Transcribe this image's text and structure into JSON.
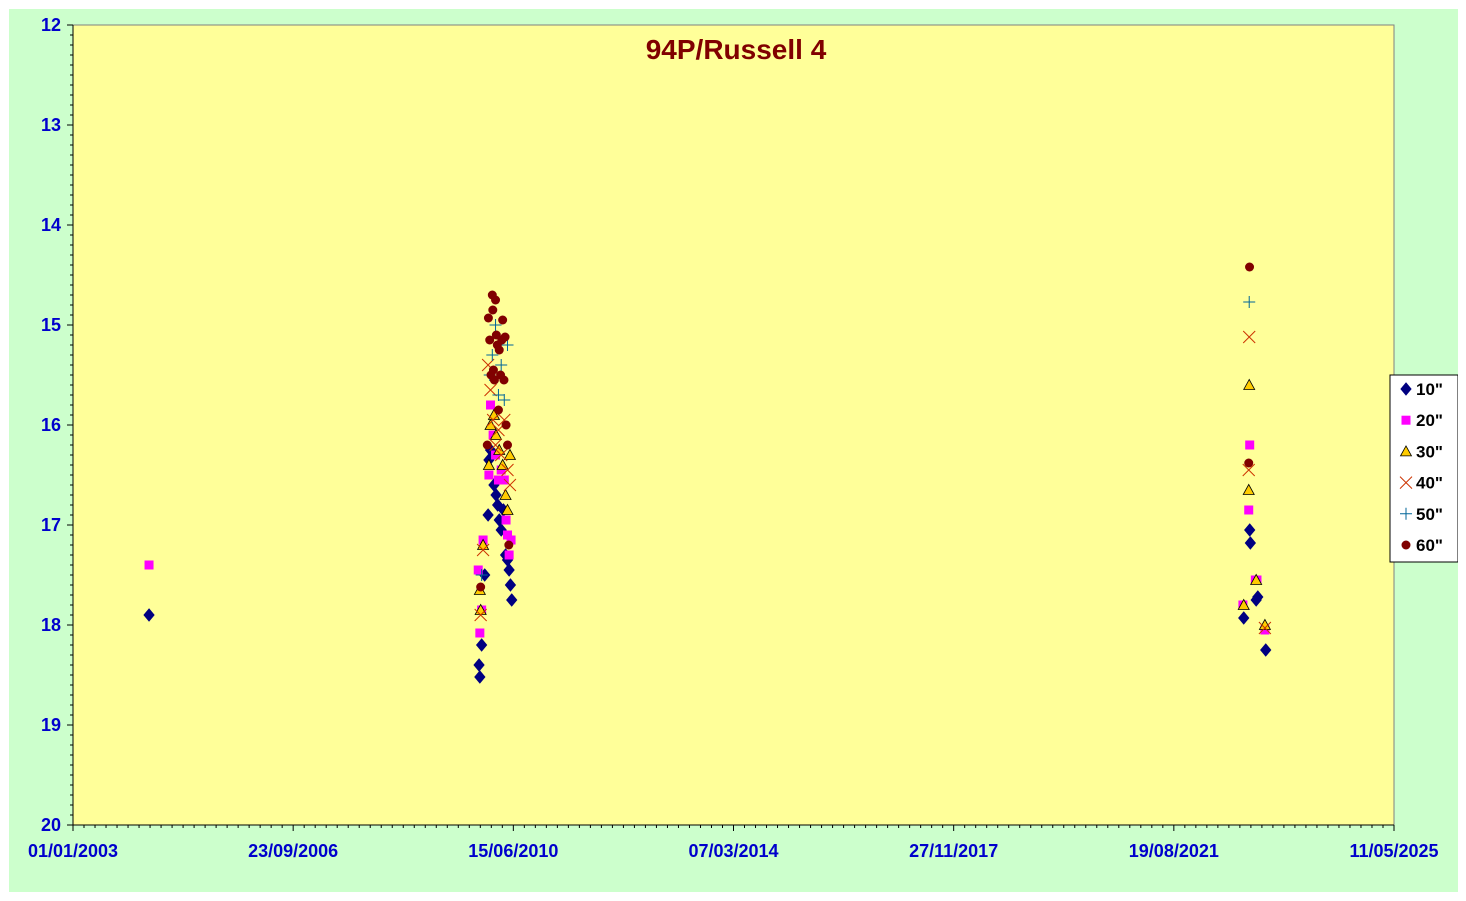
{
  "chart_data": {
    "type": "scatter",
    "title": "94P/Russell 4",
    "xlabel": "",
    "ylabel": "",
    "x_axis_type": "date",
    "xlim": [
      "2003-01-01",
      "2025-05-11"
    ],
    "x_ticks": [
      "01/01/2003",
      "23/09/2006",
      "15/06/2010",
      "07/03/2014",
      "27/11/2017",
      "19/08/2021",
      "11/05/2025"
    ],
    "ylim": [
      12,
      20
    ],
    "y_reversed": true,
    "y_ticks": [
      "12",
      "13",
      "14",
      "15",
      "16",
      "17",
      "18",
      "19",
      "20"
    ],
    "grid": false,
    "legend_position": "right",
    "plot_background": "#ffff99",
    "chart_background": "#ccffcc",
    "series": [
      {
        "name": "10\"",
        "marker": "diamond",
        "color": "#000080",
        "points": [
          [
            "2004-04-15",
            17.9
          ],
          [
            "2009-11-15",
            18.4
          ],
          [
            "2009-11-20",
            18.52
          ],
          [
            "2009-12-01",
            18.2
          ],
          [
            "2009-12-20",
            17.5
          ],
          [
            "2010-01-10",
            16.9
          ],
          [
            "2010-01-15",
            16.35
          ],
          [
            "2010-01-25",
            16.25
          ],
          [
            "2010-02-15",
            16.6
          ],
          [
            "2010-02-28",
            16.7
          ],
          [
            "2010-03-10",
            16.8
          ],
          [
            "2010-03-20",
            16.95
          ],
          [
            "2010-04-01",
            17.05
          ],
          [
            "2010-04-15",
            16.85
          ],
          [
            "2010-04-28",
            17.3
          ],
          [
            "2010-05-10",
            17.35
          ],
          [
            "2010-05-20",
            17.45
          ],
          [
            "2010-05-28",
            17.6
          ],
          [
            "2010-06-05",
            17.75
          ],
          [
            "2022-10-25",
            17.93
          ],
          [
            "2022-12-01",
            17.05
          ],
          [
            "2022-12-05",
            17.18
          ],
          [
            "2023-01-10",
            17.75
          ],
          [
            "2023-01-20",
            17.72
          ],
          [
            "2023-03-10",
            18.25
          ]
        ]
      },
      {
        "name": "20\"",
        "marker": "square",
        "color": "#ff00ff",
        "points": [
          [
            "2004-04-15",
            17.4
          ],
          [
            "2009-11-10",
            17.45
          ],
          [
            "2009-11-20",
            18.08
          ],
          [
            "2009-12-01",
            17.85
          ],
          [
            "2009-12-10",
            17.15
          ],
          [
            "2010-01-15",
            16.5
          ],
          [
            "2010-01-25",
            15.8
          ],
          [
            "2010-02-10",
            16.1
          ],
          [
            "2010-02-25",
            16.3
          ],
          [
            "2010-03-15",
            16.55
          ],
          [
            "2010-04-01",
            16.45
          ],
          [
            "2010-04-20",
            16.55
          ],
          [
            "2010-05-01",
            16.95
          ],
          [
            "2010-05-10",
            17.1
          ],
          [
            "2010-05-20",
            17.3
          ],
          [
            "2010-06-01",
            17.15
          ],
          [
            "2022-10-20",
            17.8
          ],
          [
            "2022-12-01",
            16.2
          ],
          [
            "2022-11-25",
            16.85
          ],
          [
            "2023-01-05",
            17.55
          ],
          [
            "2023-01-15",
            17.55
          ],
          [
            "2023-03-05",
            18.05
          ]
        ]
      },
      {
        "name": "30\"",
        "marker": "triangle",
        "color": "#ffcc00",
        "points": [
          [
            "2009-11-20",
            17.65
          ],
          [
            "2009-11-25",
            17.85
          ],
          [
            "2009-12-10",
            17.2
          ],
          [
            "2010-01-15",
            16.4
          ],
          [
            "2010-01-25",
            16.0
          ],
          [
            "2010-02-15",
            15.9
          ],
          [
            "2010-02-28",
            16.1
          ],
          [
            "2010-03-20",
            16.25
          ],
          [
            "2010-04-10",
            16.4
          ],
          [
            "2010-04-28",
            16.7
          ],
          [
            "2010-05-10",
            16.85
          ],
          [
            "2010-05-25",
            16.3
          ],
          [
            "2022-10-25",
            17.8
          ],
          [
            "2022-11-28",
            15.6
          ],
          [
            "2022-11-25",
            16.65
          ],
          [
            "2023-01-10",
            17.55
          ],
          [
            "2023-03-05",
            18.0
          ]
        ]
      },
      {
        "name": "40\"",
        "marker": "x",
        "color": "#cc3300",
        "points": [
          [
            "2009-11-25",
            17.9
          ],
          [
            "2009-12-10",
            17.25
          ],
          [
            "2010-01-10",
            15.4
          ],
          [
            "2010-01-25",
            15.65
          ],
          [
            "2010-02-10",
            15.95
          ],
          [
            "2010-02-25",
            16.2
          ],
          [
            "2010-03-15",
            16.05
          ],
          [
            "2010-04-01",
            16.3
          ],
          [
            "2010-04-20",
            15.95
          ],
          [
            "2010-05-10",
            16.45
          ],
          [
            "2010-05-25",
            16.6
          ],
          [
            "2022-11-28",
            15.12
          ],
          [
            "2022-11-25",
            16.45
          ],
          [
            "2023-03-05",
            18.03
          ]
        ]
      },
      {
        "name": "50\"",
        "marker": "plus",
        "color": "#006699",
        "points": [
          [
            "2009-12-01",
            17.5
          ],
          [
            "2010-01-20",
            15.5
          ],
          [
            "2010-02-05",
            15.3
          ],
          [
            "2010-02-25",
            15.0
          ],
          [
            "2010-03-15",
            15.7
          ],
          [
            "2010-04-01",
            15.4
          ],
          [
            "2010-04-20",
            15.75
          ],
          [
            "2010-05-10",
            15.2
          ],
          [
            "2022-11-28",
            14.77
          ]
        ]
      },
      {
        "name": "60\"",
        "marker": "circle",
        "color": "#800000",
        "points": [
          [
            "2009-11-25",
            17.62
          ],
          [
            "2010-01-05",
            16.2
          ],
          [
            "2010-01-12",
            14.93
          ],
          [
            "2010-01-20",
            15.15
          ],
          [
            "2010-01-28",
            15.5
          ],
          [
            "2010-02-05",
            14.7
          ],
          [
            "2010-02-08",
            14.85
          ],
          [
            "2010-02-12",
            15.45
          ],
          [
            "2010-02-18",
            15.55
          ],
          [
            "2010-02-25",
            14.75
          ],
          [
            "2010-03-02",
            15.1
          ],
          [
            "2010-03-08",
            15.2
          ],
          [
            "2010-03-15",
            15.85
          ],
          [
            "2010-03-20",
            15.25
          ],
          [
            "2010-03-28",
            15.5
          ],
          [
            "2010-04-05",
            15.15
          ],
          [
            "2010-04-10",
            14.95
          ],
          [
            "2010-04-18",
            15.55
          ],
          [
            "2010-04-25",
            15.12
          ],
          [
            "2010-05-01",
            16.0
          ],
          [
            "2010-05-10",
            16.2
          ],
          [
            "2010-05-18",
            17.2
          ],
          [
            "2022-11-25",
            16.38
          ],
          [
            "2022-11-30",
            14.42
          ]
        ]
      }
    ]
  }
}
